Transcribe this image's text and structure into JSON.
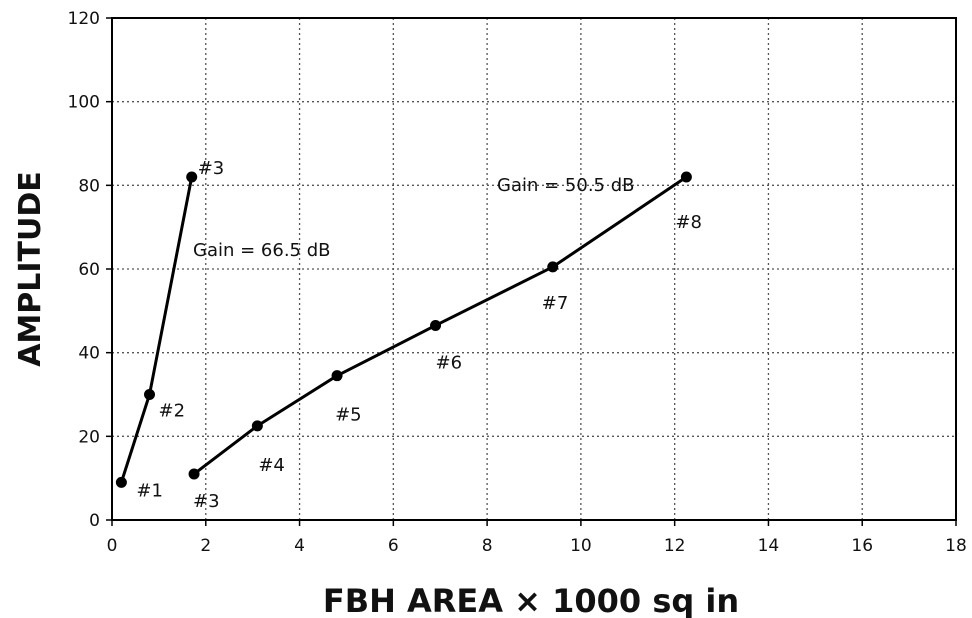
{
  "chart_data": {
    "type": "line",
    "xlabel": "FBH AREA × 1000 sq in",
    "ylabel": "AMPLITUDE",
    "xlim": [
      0,
      18
    ],
    "ylim": [
      0,
      120
    ],
    "x_ticks": [
      0,
      2,
      4,
      6,
      8,
      10,
      12,
      14,
      16,
      18
    ],
    "y_ticks": [
      0,
      20,
      40,
      60,
      80,
      100,
      120
    ],
    "grid": true,
    "legend": "none",
    "color": "#000000",
    "series": [
      {
        "points": [
          {
            "x": 0.2,
            "y": 9,
            "label": "#1"
          },
          {
            "x": 0.8,
            "y": 30,
            "label": "#2"
          },
          {
            "x": 1.7,
            "y": 82,
            "label": "#3"
          }
        ],
        "annotation": "Gain = 66.5 dB"
      },
      {
        "points": [
          {
            "x": 1.75,
            "y": 11,
            "label": "#3"
          },
          {
            "x": 3.1,
            "y": 22.5,
            "label": "#4"
          },
          {
            "x": 4.8,
            "y": 34.5,
            "label": "#5"
          },
          {
            "x": 6.9,
            "y": 46.5,
            "label": "#6"
          },
          {
            "x": 9.4,
            "y": 60.5,
            "label": "#7"
          },
          {
            "x": 12.25,
            "y": 82,
            "label": "#8"
          }
        ],
        "annotation": "Gain = 50.5 dB"
      }
    ]
  }
}
